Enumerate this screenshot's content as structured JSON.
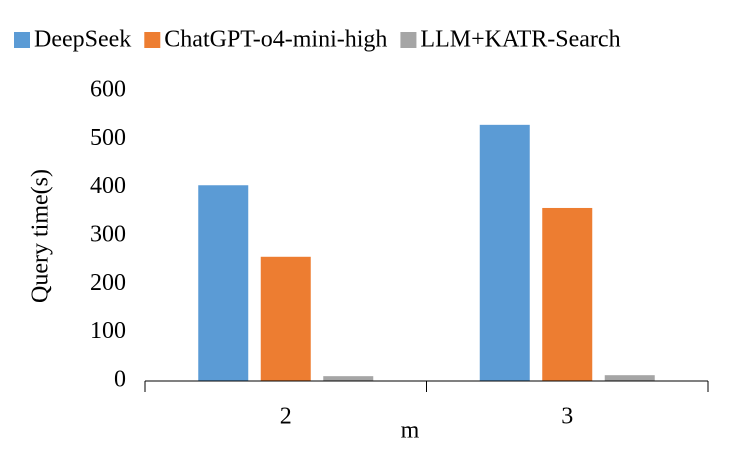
{
  "chart_data": {
    "type": "bar",
    "categories": [
      "2",
      "3"
    ],
    "x_label": "m",
    "y_label": "Query time(s)",
    "series": [
      {
        "name": "DeepSeek",
        "color": "#5b9bd5",
        "values": [
          405,
          530
        ]
      },
      {
        "name": "ChatGPT-o4-mini-high",
        "color": "#ed7d31",
        "values": [
          257,
          358
        ]
      },
      {
        "name": "LLM+KATR-Search",
        "color": "#a5a5a5",
        "values": [
          10,
          12
        ]
      }
    ],
    "ylim": [
      0,
      600
    ],
    "yticks": [
      0,
      100,
      200,
      300,
      400,
      500,
      600
    ],
    "grid": false,
    "legend": "top"
  }
}
